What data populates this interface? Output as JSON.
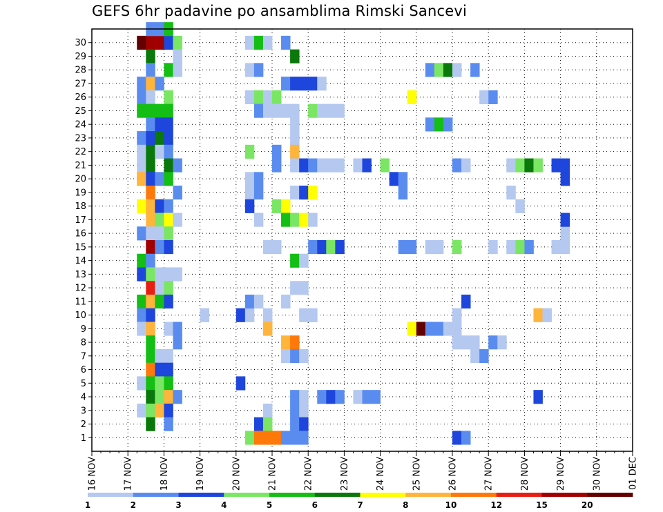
{
  "chart_data": {
    "type": "heatmap",
    "title": "GEFS 6hr padavine po ansamblima Rimski Sancevi",
    "xlabel": "",
    "ylabel": "",
    "x_ticks": [
      "16 NOV",
      "17 NOV",
      "18 NOV",
      "19 NOV",
      "20 NOV",
      "21 NOV",
      "22 NOV",
      "23 NOV",
      "24 NOV",
      "25 NOV",
      "26 NOV",
      "27 NOV",
      "28 NOV",
      "29 NOV",
      "30 NOV",
      "01 DEC"
    ],
    "y_ticks": [
      "1",
      "2",
      "3",
      "4",
      "5",
      "6",
      "7",
      "8",
      "9",
      "10",
      "11",
      "12",
      "13",
      "14",
      "15",
      "16",
      "17",
      "18",
      "19",
      "20",
      "21",
      "22",
      "23",
      "24",
      "25",
      "26",
      "27",
      "28",
      "29",
      "30"
    ],
    "grid": true,
    "x_unit": "6-hour step since 16 NOV 00Z",
    "levels": [
      "1",
      "2",
      "3",
      "4",
      "5",
      "6",
      "7",
      "8",
      "10",
      "12",
      "15",
      "20"
    ],
    "level_colors": [
      "#b4c8f0",
      "#5a8cf0",
      "#1e46dc",
      "#7ae664",
      "#14be14",
      "#0a780a",
      "#ffff00",
      "#ffb43c",
      "#ff780a",
      "#e61e14",
      "#a00000",
      "#640000"
    ],
    "cells": [
      [
        5,
        29,
        11
      ],
      [
        6,
        29,
        10
      ],
      [
        7,
        29,
        10
      ],
      [
        8,
        29,
        2
      ],
      [
        9,
        29,
        3
      ],
      [
        6,
        30,
        1
      ],
      [
        7,
        30,
        1
      ],
      [
        8,
        30,
        4
      ],
      [
        6,
        28,
        5
      ],
      [
        9,
        28,
        0
      ],
      [
        6,
        27,
        1
      ],
      [
        8,
        27,
        4
      ],
      [
        9,
        27,
        0
      ],
      [
        5,
        26,
        1
      ],
      [
        6,
        26,
        7
      ],
      [
        7,
        26,
        1
      ],
      [
        5,
        25,
        1
      ],
      [
        6,
        25,
        0
      ],
      [
        8,
        25,
        3
      ],
      [
        5,
        24,
        4
      ],
      [
        6,
        24,
        4
      ],
      [
        7,
        24,
        4
      ],
      [
        8,
        24,
        4
      ],
      [
        6,
        23,
        1
      ],
      [
        7,
        23,
        2
      ],
      [
        8,
        23,
        2
      ],
      [
        5,
        22,
        1
      ],
      [
        6,
        22,
        2
      ],
      [
        7,
        22,
        5
      ],
      [
        8,
        22,
        2
      ],
      [
        5,
        21,
        0
      ],
      [
        6,
        21,
        5
      ],
      [
        7,
        21,
        0
      ],
      [
        8,
        21,
        1
      ],
      [
        5,
        20,
        0
      ],
      [
        6,
        20,
        5
      ],
      [
        8,
        20,
        5
      ],
      [
        9,
        20,
        1
      ],
      [
        5,
        19,
        7
      ],
      [
        6,
        19,
        2
      ],
      [
        7,
        19,
        1
      ],
      [
        8,
        19,
        4
      ],
      [
        6,
        18,
        8
      ],
      [
        9,
        18,
        1
      ],
      [
        5,
        17,
        6
      ],
      [
        6,
        17,
        7
      ],
      [
        7,
        17,
        2
      ],
      [
        8,
        17,
        1
      ],
      [
        6,
        16,
        7
      ],
      [
        7,
        16,
        3
      ],
      [
        8,
        16,
        6
      ],
      [
        9,
        16,
        0
      ],
      [
        5,
        15,
        1
      ],
      [
        6,
        15,
        0
      ],
      [
        7,
        15,
        0
      ],
      [
        8,
        15,
        3
      ],
      [
        6,
        14,
        10
      ],
      [
        7,
        14,
        1
      ],
      [
        8,
        14,
        2
      ],
      [
        5,
        13,
        4
      ],
      [
        6,
        13,
        1
      ],
      [
        5,
        12,
        2
      ],
      [
        6,
        12,
        3
      ],
      [
        7,
        12,
        0
      ],
      [
        8,
        12,
        0
      ],
      [
        9,
        12,
        0
      ],
      [
        6,
        11,
        9
      ],
      [
        7,
        11,
        0
      ],
      [
        8,
        11,
        3
      ],
      [
        5,
        10,
        4
      ],
      [
        6,
        10,
        7
      ],
      [
        7,
        10,
        4
      ],
      [
        8,
        10,
        2
      ],
      [
        5,
        9,
        1
      ],
      [
        6,
        9,
        2
      ],
      [
        5,
        8,
        0
      ],
      [
        6,
        8,
        7
      ],
      [
        8,
        8,
        0
      ],
      [
        9,
        8,
        1
      ],
      [
        6,
        7,
        4
      ],
      [
        9,
        7,
        1
      ],
      [
        6,
        6,
        4
      ],
      [
        7,
        6,
        0
      ],
      [
        8,
        6,
        0
      ],
      [
        6,
        5,
        8
      ],
      [
        7,
        5,
        2
      ],
      [
        8,
        5,
        2
      ],
      [
        5,
        4,
        0
      ],
      [
        6,
        4,
        4
      ],
      [
        7,
        4,
        3
      ],
      [
        8,
        4,
        4
      ],
      [
        6,
        3,
        5
      ],
      [
        7,
        3,
        3
      ],
      [
        8,
        3,
        7
      ],
      [
        9,
        3,
        1
      ],
      [
        5,
        2,
        0
      ],
      [
        6,
        2,
        3
      ],
      [
        7,
        2,
        7
      ],
      [
        8,
        2,
        2
      ],
      [
        6,
        1,
        5
      ],
      [
        8,
        1,
        1
      ],
      [
        12,
        9,
        0
      ],
      [
        16,
        9,
        2
      ],
      [
        17,
        9,
        0
      ],
      [
        16,
        4,
        2
      ],
      [
        17,
        29,
        0
      ],
      [
        18,
        29,
        4
      ],
      [
        19,
        29,
        0
      ],
      [
        21,
        29,
        1
      ],
      [
        17,
        27,
        0
      ],
      [
        18,
        27,
        1
      ],
      [
        21,
        26,
        1
      ],
      [
        17,
        25,
        0
      ],
      [
        18,
        25,
        3
      ],
      [
        19,
        25,
        0
      ],
      [
        20,
        25,
        3
      ],
      [
        18,
        24,
        1
      ],
      [
        19,
        24,
        0
      ],
      [
        20,
        24,
        0
      ],
      [
        21,
        24,
        0
      ],
      [
        22,
        24,
        0
      ],
      [
        17,
        21,
        3
      ],
      [
        17,
        19,
        0
      ],
      [
        18,
        19,
        1
      ],
      [
        17,
        18,
        0
      ],
      [
        18,
        18,
        1
      ],
      [
        17,
        17,
        2
      ],
      [
        18,
        16,
        0
      ],
      [
        19,
        14,
        0
      ],
      [
        20,
        14,
        0
      ],
      [
        17,
        10,
        1
      ],
      [
        18,
        10,
        0
      ],
      [
        21,
        10,
        0
      ],
      [
        19,
        9,
        0
      ],
      [
        19,
        8,
        7
      ],
      [
        21,
        7,
        7
      ],
      [
        21,
        6,
        0
      ],
      [
        19,
        2,
        0
      ],
      [
        18,
        1,
        2
      ],
      [
        19,
        1,
        3
      ],
      [
        17,
        0,
        3
      ],
      [
        18,
        0,
        8
      ],
      [
        19,
        0,
        8
      ],
      [
        20,
        0,
        8
      ],
      [
        21,
        0,
        1
      ],
      [
        20,
        21,
        1
      ],
      [
        20,
        20,
        1
      ],
      [
        20,
        17,
        3
      ],
      [
        21,
        17,
        6
      ],
      [
        21,
        16,
        4
      ],
      [
        22,
        28,
        5
      ],
      [
        22,
        26,
        2
      ],
      [
        23,
        26,
        2
      ],
      [
        24,
        26,
        2
      ],
      [
        25,
        26,
        0
      ],
      [
        22,
        23,
        0
      ],
      [
        22,
        22,
        0
      ],
      [
        22,
        21,
        7
      ],
      [
        22,
        20,
        0
      ],
      [
        23,
        20,
        2
      ],
      [
        24,
        20,
        1
      ],
      [
        25,
        20,
        0
      ],
      [
        26,
        20,
        0
      ],
      [
        27,
        20,
        0
      ],
      [
        22,
        18,
        0
      ],
      [
        23,
        18,
        2
      ],
      [
        24,
        18,
        6
      ],
      [
        22,
        16,
        3
      ],
      [
        23,
        16,
        6
      ],
      [
        24,
        16,
        0
      ],
      [
        22,
        13,
        4
      ],
      [
        23,
        13,
        0
      ],
      [
        22,
        11,
        0
      ],
      [
        23,
        11,
        0
      ],
      [
        23,
        9,
        0
      ],
      [
        22,
        7,
        8
      ],
      [
        22,
        6,
        1
      ],
      [
        23,
        6,
        0
      ],
      [
        22,
        3,
        1
      ],
      [
        23,
        3,
        0
      ],
      [
        22,
        2,
        1
      ],
      [
        23,
        2,
        0
      ],
      [
        22,
        1,
        1
      ],
      [
        23,
        1,
        2
      ],
      [
        22,
        0,
        1
      ],
      [
        23,
        0,
        1
      ],
      [
        24,
        24,
        3
      ],
      [
        25,
        24,
        0
      ],
      [
        26,
        24,
        0
      ],
      [
        27,
        24,
        0
      ],
      [
        24,
        14,
        1
      ],
      [
        25,
        14,
        2
      ],
      [
        26,
        14,
        3
      ],
      [
        27,
        14,
        2
      ],
      [
        24,
        9,
        0
      ],
      [
        25,
        3,
        1
      ],
      [
        26,
        3,
        2
      ],
      [
        27,
        3,
        1
      ],
      [
        29,
        20,
        0
      ],
      [
        30,
        20,
        2
      ],
      [
        32,
        20,
        3
      ],
      [
        29,
        3,
        0
      ],
      [
        30,
        3,
        1
      ],
      [
        31,
        3,
        1
      ],
      [
        33,
        19,
        2
      ],
      [
        34,
        19,
        1
      ],
      [
        34,
        18,
        1
      ],
      [
        34,
        14,
        1
      ],
      [
        35,
        14,
        1
      ],
      [
        35,
        25,
        6
      ],
      [
        35,
        8,
        6
      ],
      [
        36,
        8,
        11
      ],
      [
        37,
        8,
        1
      ],
      [
        38,
        8,
        1
      ],
      [
        39,
        8,
        0
      ],
      [
        40,
        8,
        0
      ],
      [
        37,
        27,
        1
      ],
      [
        38,
        27,
        3
      ],
      [
        39,
        27,
        5
      ],
      [
        40,
        27,
        0
      ],
      [
        42,
        27,
        1
      ],
      [
        37,
        23,
        1
      ],
      [
        38,
        23,
        4
      ],
      [
        39,
        23,
        1
      ],
      [
        37,
        14,
        0
      ],
      [
        38,
        14,
        0
      ],
      [
        40,
        14,
        3
      ],
      [
        40,
        20,
        1
      ],
      [
        41,
        20,
        0
      ],
      [
        40,
        9,
        0
      ],
      [
        41,
        10,
        2
      ],
      [
        40,
        0,
        2
      ],
      [
        41,
        0,
        1
      ],
      [
        40,
        7,
        0
      ],
      [
        41,
        7,
        0
      ],
      [
        42,
        7,
        0
      ],
      [
        42,
        6,
        0
      ],
      [
        43,
        6,
        1
      ],
      [
        43,
        25,
        0
      ],
      [
        44,
        25,
        1
      ],
      [
        44,
        7,
        1
      ],
      [
        45,
        7,
        0
      ],
      [
        44,
        14,
        0
      ],
      [
        46,
        14,
        0
      ],
      [
        47,
        14,
        3
      ],
      [
        48,
        14,
        1
      ],
      [
        46,
        20,
        0
      ],
      [
        47,
        20,
        3
      ],
      [
        48,
        20,
        5
      ],
      [
        49,
        20,
        3
      ],
      [
        47,
        17,
        0
      ],
      [
        46,
        18,
        0
      ],
      [
        49,
        9,
        7
      ],
      [
        50,
        9,
        0
      ],
      [
        49,
        3,
        2
      ],
      [
        51,
        14,
        0
      ],
      [
        52,
        14,
        0
      ],
      [
        52,
        15,
        0
      ],
      [
        52,
        16,
        2
      ],
      [
        51,
        20,
        2
      ],
      [
        52,
        20,
        2
      ],
      [
        52,
        19,
        2
      ]
    ]
  }
}
